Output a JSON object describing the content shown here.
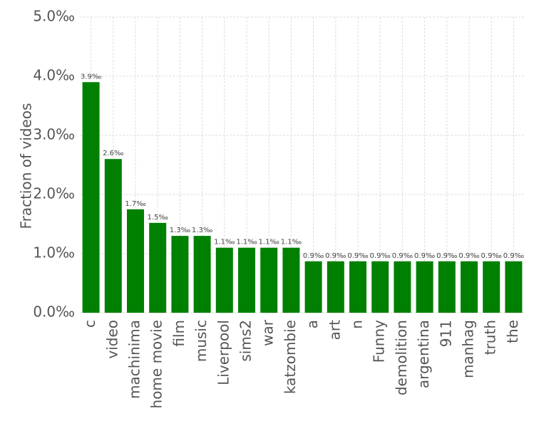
{
  "chart_data": {
    "type": "bar",
    "ylabel": "Fraction of videos",
    "xlabel": "",
    "ylim": [
      0,
      5.0
    ],
    "y_tick_values": [
      0,
      1,
      2,
      3,
      4,
      5
    ],
    "y_tick_labels": [
      "0.0‰",
      "1.0‰",
      "2.0‰",
      "3.0‰",
      "4.0‰",
      "5.0‰"
    ],
    "grid": true,
    "legend": "none",
    "bar_color": "#008000",
    "categories": [
      "c",
      "video",
      "machinima",
      "home movie",
      "film",
      "music",
      "Liverpool",
      "sims2",
      "war",
      "katzombie",
      "a",
      "art",
      "n",
      "Funny",
      "demolition",
      "argentina",
      "911",
      "manhag",
      "truth",
      "the"
    ],
    "values": [
      3.9,
      2.6,
      1.75,
      1.52,
      1.3,
      1.3,
      1.1,
      1.1,
      1.1,
      1.1,
      0.87,
      0.87,
      0.87,
      0.87,
      0.87,
      0.87,
      0.87,
      0.87,
      0.87,
      0.87
    ],
    "data_labels": [
      "3.9‰",
      "2.6‰",
      "1.7‰",
      "1.5‰",
      "1.3‰",
      "1.3‰",
      "1.1‰",
      "1.1‰",
      "1.1‰",
      "1.1‰",
      "0.9‰",
      "0.9‰",
      "0.9‰",
      "0.9‰",
      "0.9‰",
      "0.9‰",
      "0.9‰",
      "0.9‰",
      "0.9‰",
      "0.9‰"
    ]
  }
}
